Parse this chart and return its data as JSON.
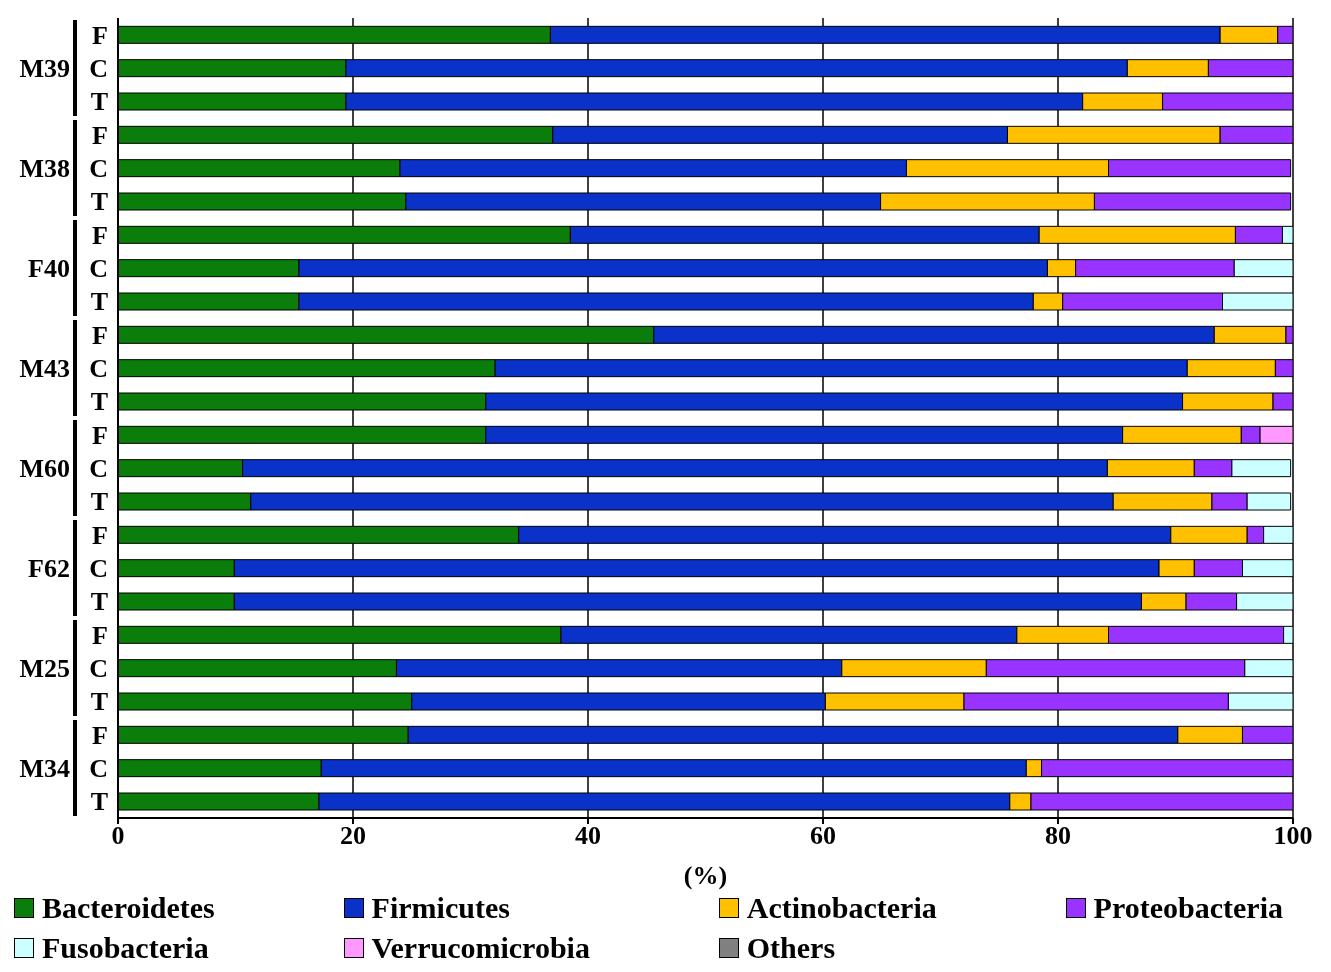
{
  "chart_data": {
    "type": "bar",
    "orientation": "horizontal",
    "stacked": true,
    "xlabel": "(%)",
    "categories": [
      "F",
      "C",
      "T",
      "F",
      "C",
      "T",
      "F",
      "C",
      "T",
      "F",
      "C",
      "T",
      "F",
      "C",
      "T",
      "F",
      "C",
      "T",
      "F",
      "C",
      "T",
      "F",
      "C",
      "T"
    ],
    "annotations": [
      "M39",
      "M38",
      "F40",
      "M43",
      "M60",
      "F62",
      "M25",
      "M34"
    ],
    "series": [
      {
        "name": "Bacteroidetes",
        "color": "#0a7d0a",
        "values": [
          36.8,
          19.4,
          19.4,
          37.0,
          24.0,
          24.5,
          38.5,
          15.4,
          15.4,
          45.6,
          32.1,
          31.3,
          31.3,
          10.6,
          11.3,
          34.1,
          9.9,
          9.9,
          37.7,
          23.7,
          25.0,
          24.7,
          17.3,
          17.1
        ]
      },
      {
        "name": "Firmicutes",
        "color": "#0a32c8",
        "values": [
          57.0,
          66.5,
          62.7,
          38.7,
          43.1,
          40.4,
          39.9,
          63.7,
          62.5,
          47.7,
          58.9,
          59.3,
          54.2,
          73.6,
          73.4,
          55.5,
          78.7,
          77.2,
          38.8,
          37.9,
          35.2,
          65.5,
          60.0,
          58.8
        ]
      },
      {
        "name": "Actinobacteria",
        "color": "#ffc000",
        "values": [
          4.9,
          6.9,
          6.8,
          18.1,
          17.2,
          18.2,
          16.7,
          2.4,
          2.5,
          6.1,
          7.5,
          7.7,
          10.1,
          7.4,
          8.4,
          6.5,
          3.0,
          3.8,
          7.8,
          12.3,
          11.8,
          5.5,
          1.3,
          1.8
        ]
      },
      {
        "name": "Proteobacteria",
        "color": "#9933ff",
        "values": [
          1.3,
          7.2,
          11.1,
          6.2,
          15.5,
          16.7,
          4.0,
          13.5,
          13.6,
          0.6,
          1.5,
          1.7,
          1.6,
          3.2,
          3.0,
          1.4,
          4.1,
          4.3,
          14.9,
          22.0,
          22.5,
          4.3,
          21.4,
          22.3
        ]
      },
      {
        "name": "Fusobacteria",
        "color": "#ccffff",
        "values": [
          0,
          0,
          0,
          0,
          0,
          0,
          0.9,
          5.0,
          6.0,
          0,
          0,
          0,
          0,
          5.0,
          3.7,
          2.5,
          4.3,
          4.8,
          0.8,
          4.1,
          5.5,
          0,
          0,
          0
        ]
      },
      {
        "name": "Verrucomicrobia",
        "color": "#ff99ff",
        "values": [
          0,
          0,
          0,
          0,
          0,
          0,
          0,
          0,
          0,
          0,
          0,
          0,
          2.8,
          0,
          0,
          0,
          0,
          0,
          0,
          0,
          0,
          0,
          0,
          0
        ]
      },
      {
        "name": "Others",
        "color": "#808080",
        "values": [
          0,
          0,
          0,
          0,
          0,
          0,
          0,
          0,
          0,
          0,
          0,
          0,
          0,
          0,
          0,
          0,
          0,
          0,
          0,
          0,
          0,
          0,
          0,
          0
        ]
      }
    ],
    "xlim": [
      0,
      100
    ],
    "xticks": [
      0,
      20,
      40,
      60,
      80,
      100
    ],
    "grid": "x",
    "legend": "bottom"
  }
}
